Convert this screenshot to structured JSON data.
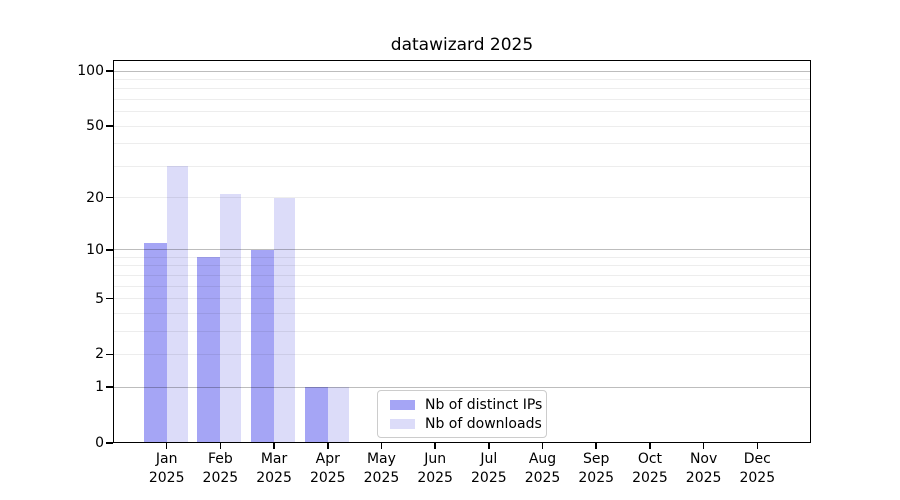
{
  "title": "datawizard 2025",
  "chart_data": {
    "type": "bar",
    "title": "datawizard 2025",
    "x_tick_months": [
      "Jan",
      "Feb",
      "Mar",
      "Apr",
      "May",
      "Jun",
      "Jul",
      "Aug",
      "Sep",
      "Oct",
      "Nov",
      "Dec"
    ],
    "x_tick_year": "2025",
    "series": [
      {
        "name": "Nb of distinct IPs",
        "color": "#a5a5f5",
        "values": [
          11,
          9,
          10,
          1,
          0,
          0,
          0,
          0,
          0,
          0,
          0,
          0
        ]
      },
      {
        "name": "Nb of downloads",
        "color": "#dcdcf9",
        "values": [
          30,
          21,
          20,
          1,
          0,
          0,
          0,
          0,
          0,
          0,
          0,
          0
        ]
      }
    ],
    "yscale": "log1p",
    "ylim": [
      0,
      115
    ],
    "yticks": [
      100,
      50,
      20,
      10,
      5,
      2,
      1,
      0
    ],
    "major_gridlines": [
      1,
      10,
      100
    ],
    "minor_gridlines": [
      2,
      3,
      4,
      5,
      6,
      7,
      8,
      9,
      20,
      30,
      40,
      50,
      60,
      70,
      80,
      90
    ],
    "grid": "horizontal, drawn over bars",
    "legend": {
      "position": "lower center",
      "entries": [
        "Nb of distinct IPs",
        "Nb of downloads"
      ]
    }
  },
  "colors": {
    "background": "#ffffff",
    "spine": "#000000",
    "text": "#000000",
    "bar_distinct_ips": "#a5a5f5",
    "bar_downloads": "#dcdcf9",
    "gridline_minor": "#ececec",
    "gridline_major": "#c2c2c2",
    "legend_border": "#cccccc"
  }
}
